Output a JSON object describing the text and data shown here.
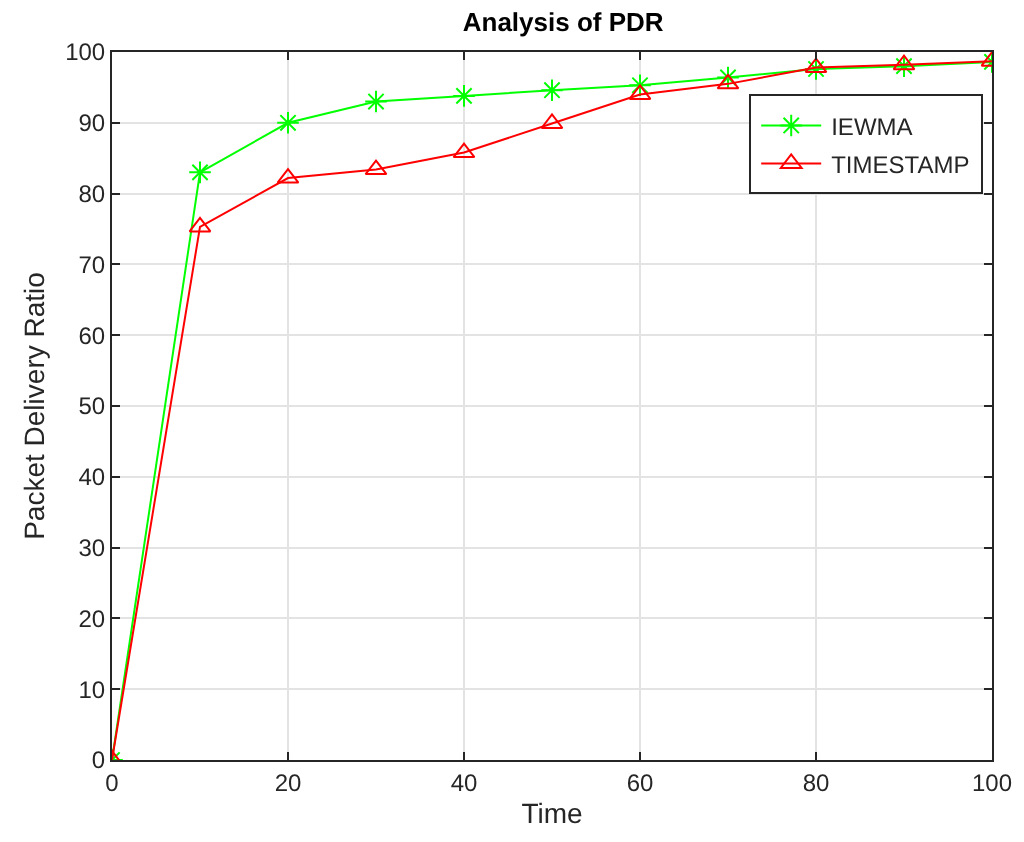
{
  "chart_data": {
    "type": "line",
    "title": "Analysis of PDR",
    "xlabel": "Time",
    "ylabel": "Packet Delivery Ratio",
    "x": [
      0,
      10,
      20,
      30,
      40,
      50,
      60,
      70,
      80,
      90,
      100
    ],
    "series": [
      {
        "name": "IEWMA",
        "color": "#00ff00",
        "marker": "cross",
        "values": [
          0,
          83.0,
          90.0,
          93.0,
          93.8,
          94.6,
          95.3,
          96.4,
          97.6,
          98.0,
          98.6
        ]
      },
      {
        "name": "TIMESTAMP",
        "color": "#ff0000",
        "marker": "triangle",
        "values": [
          0,
          75.3,
          82.2,
          83.4,
          85.8,
          89.9,
          94.0,
          95.5,
          97.8,
          98.2,
          98.7
        ]
      }
    ],
    "xlim": [
      0,
      100
    ],
    "xticks": [
      0,
      20,
      40,
      60,
      80,
      100
    ],
    "ylim": [
      0,
      100
    ],
    "yticks": [
      0,
      10,
      20,
      30,
      40,
      50,
      60,
      70,
      80,
      90,
      100
    ],
    "grid": true,
    "legend": "top right",
    "line_style": "solid"
  }
}
